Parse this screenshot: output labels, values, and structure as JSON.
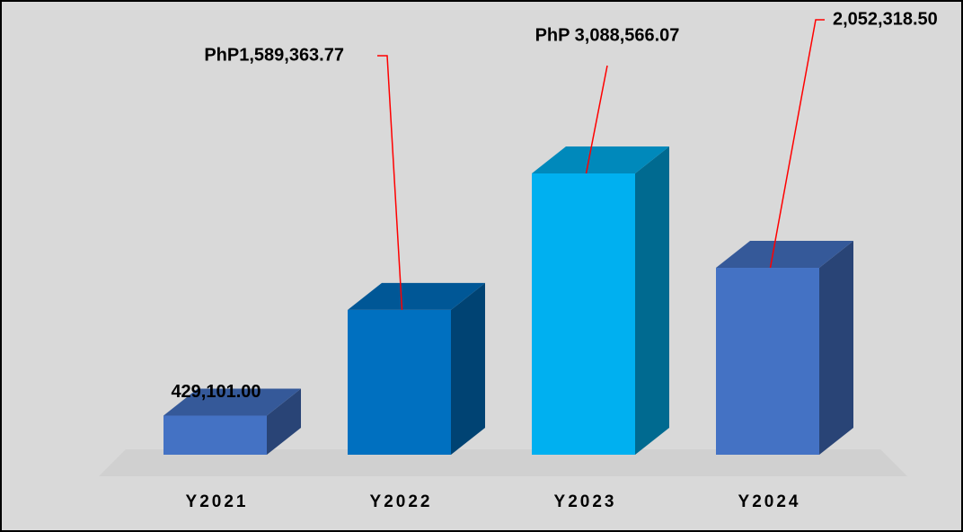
{
  "chart_data": {
    "type": "bar3d",
    "categories": [
      "Y2021",
      "Y2022",
      "Y2023",
      "Y2024"
    ],
    "values": [
      429101.0,
      1589363.77,
      3088566.07,
      2052318.5
    ],
    "value_labels": [
      "429,101.00",
      "PhP1,589,363.77",
      "PhP 3,088,566.07",
      "2,052,318.50"
    ],
    "colors": [
      "#4472c4",
      "#0070c0",
      "#00b0f0",
      "#4472c4"
    ]
  }
}
